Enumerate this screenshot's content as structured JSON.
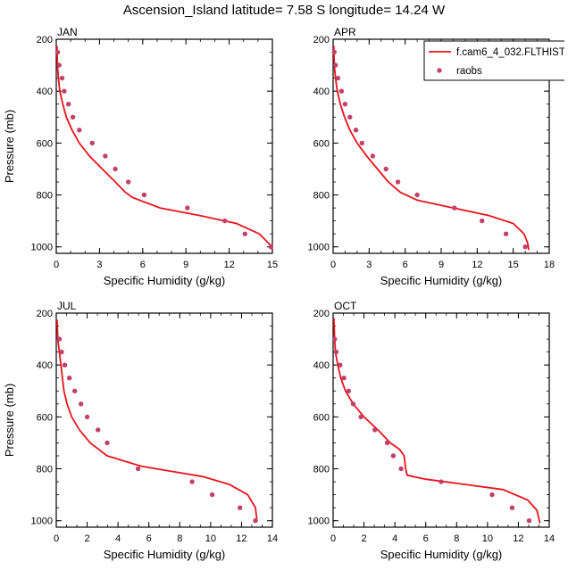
{
  "figure": {
    "title": "Ascension_Island  latitude= 7.58 S longitude= 14.24 W"
  },
  "colors": {
    "model_line": "#e8141c",
    "obs_marker": "#c2406a",
    "axis": "#000000"
  },
  "legend": {
    "position": "top-right",
    "entries": [
      {
        "label": "f.cam6_4_032.FLTHIST",
        "style": "line"
      },
      {
        "label": "raobs",
        "style": "marker"
      }
    ]
  },
  "chart_data": [
    {
      "type": "line",
      "title": "JAN",
      "xlabel": "Specific Humidity (g/kg)",
      "ylabel": "Pressure (mb)",
      "xlim": [
        0,
        15
      ],
      "xticks": [
        0,
        3,
        6,
        9,
        12,
        15
      ],
      "ylim": [
        200,
        1025
      ],
      "yticks": [
        200,
        400,
        600,
        800,
        1000
      ],
      "y_reversed": true,
      "series": [
        {
          "name": "f.cam6_4_032.FLTHIST",
          "x": [
            0.05,
            0.08,
            0.15,
            0.25,
            0.45,
            0.7,
            1.1,
            1.6,
            2.3,
            3.2,
            4.1,
            4.8,
            5.3,
            7.2,
            10,
            12.5,
            14.1,
            14.8,
            15.0
          ],
          "y": [
            225,
            300,
            350,
            400,
            450,
            500,
            550,
            600,
            650,
            700,
            750,
            790,
            810,
            850,
            880,
            910,
            950,
            990,
            1012
          ]
        },
        {
          "name": "raobs",
          "x": [
            0.1,
            0.2,
            0.4,
            0.55,
            0.85,
            1.15,
            1.6,
            2.5,
            3.4,
            4.1,
            5.0,
            6.1,
            9.1,
            11.7,
            13.1,
            14.9
          ],
          "y": [
            250,
            300,
            350,
            400,
            450,
            500,
            550,
            600,
            650,
            700,
            750,
            800,
            850,
            900,
            950,
            1000
          ]
        }
      ]
    },
    {
      "type": "line",
      "title": "APR",
      "xlabel": "Specific Humidity (g/kg)",
      "ylabel": "Pressure (mb)",
      "xlim": [
        0,
        18
      ],
      "xticks": [
        0,
        3,
        6,
        9,
        12,
        15,
        18
      ],
      "ylim": [
        200,
        1025
      ],
      "yticks": [
        200,
        400,
        600,
        800,
        1000
      ],
      "y_reversed": true,
      "series": [
        {
          "name": "f.cam6_4_032.FLTHIST",
          "x": [
            0.05,
            0.1,
            0.2,
            0.35,
            0.6,
            0.95,
            1.4,
            2.0,
            2.8,
            3.7,
            4.6,
            5.6,
            7.0,
            10.0,
            13.0,
            15.0,
            15.9,
            16.2,
            16.3
          ],
          "y": [
            225,
            300,
            350,
            400,
            450,
            500,
            550,
            600,
            650,
            700,
            750,
            790,
            820,
            850,
            880,
            910,
            950,
            985,
            1012
          ]
        },
        {
          "name": "raobs",
          "x": [
            0.1,
            0.2,
            0.4,
            0.7,
            1.0,
            1.4,
            1.9,
            2.4,
            3.3,
            4.4,
            5.4,
            7.0,
            10.1,
            12.4,
            14.4,
            16.0
          ],
          "y": [
            250,
            300,
            350,
            400,
            450,
            500,
            550,
            600,
            650,
            700,
            750,
            800,
            850,
            900,
            950,
            1000
          ]
        }
      ]
    },
    {
      "type": "line",
      "title": "JUL",
      "xlabel": "Specific Humidity (g/kg)",
      "ylabel": "Pressure (mb)",
      "xlim": [
        0,
        14
      ],
      "xticks": [
        0,
        2,
        4,
        6,
        8,
        10,
        12,
        14
      ],
      "ylim": [
        200,
        1025
      ],
      "yticks": [
        200,
        400,
        600,
        800,
        1000
      ],
      "y_reversed": true,
      "series": [
        {
          "name": "f.cam6_4_032.FLTHIST",
          "x": [
            0.05,
            0.1,
            0.2,
            0.3,
            0.4,
            0.5,
            0.7,
            1.0,
            1.5,
            2.2,
            3.3,
            5.5,
            7.5,
            9.5,
            11.2,
            12.4,
            12.9,
            13.0
          ],
          "y": [
            225,
            300,
            350,
            400,
            450,
            500,
            550,
            600,
            650,
            700,
            750,
            790,
            810,
            830,
            860,
            900,
            950,
            1000
          ]
        },
        {
          "name": "raobs",
          "x": [
            0.2,
            0.35,
            0.55,
            0.85,
            1.2,
            1.6,
            2.0,
            2.7,
            3.3,
            5.3,
            8.8,
            10.1,
            11.9,
            12.9
          ],
          "y": [
            300,
            350,
            400,
            450,
            500,
            550,
            600,
            650,
            700,
            800,
            850,
            900,
            950,
            1000
          ]
        }
      ]
    },
    {
      "type": "line",
      "title": "OCT",
      "xlabel": "Specific Humidity (g/kg)",
      "ylabel": "Pressure (mb)",
      "xlim": [
        0,
        14
      ],
      "xticks": [
        0,
        2,
        4,
        6,
        8,
        10,
        12,
        14
      ],
      "ylim": [
        200,
        1025
      ],
      "yticks": [
        200,
        400,
        600,
        800,
        1000
      ],
      "y_reversed": true,
      "series": [
        {
          "name": "f.cam6_4_032.FLTHIST",
          "x": [
            0.05,
            0.1,
            0.15,
            0.3,
            0.5,
            0.8,
            1.3,
            2.0,
            2.9,
            3.7,
            4.3,
            4.6,
            4.7,
            4.8,
            6.0,
            8.5,
            11.0,
            12.6,
            13.2,
            13.4
          ],
          "y": [
            220,
            300,
            350,
            400,
            450,
            500,
            550,
            600,
            650,
            700,
            725,
            750,
            800,
            825,
            840,
            860,
            880,
            920,
            960,
            1010
          ]
        },
        {
          "name": "raobs",
          "x": [
            0.1,
            0.2,
            0.45,
            0.7,
            1.0,
            1.3,
            1.8,
            2.7,
            3.5,
            3.9,
            4.4,
            7.0,
            10.3,
            11.6,
            12.7
          ],
          "y": [
            300,
            350,
            400,
            450,
            500,
            550,
            600,
            650,
            700,
            750,
            800,
            850,
            900,
            950,
            1000
          ]
        }
      ]
    }
  ]
}
